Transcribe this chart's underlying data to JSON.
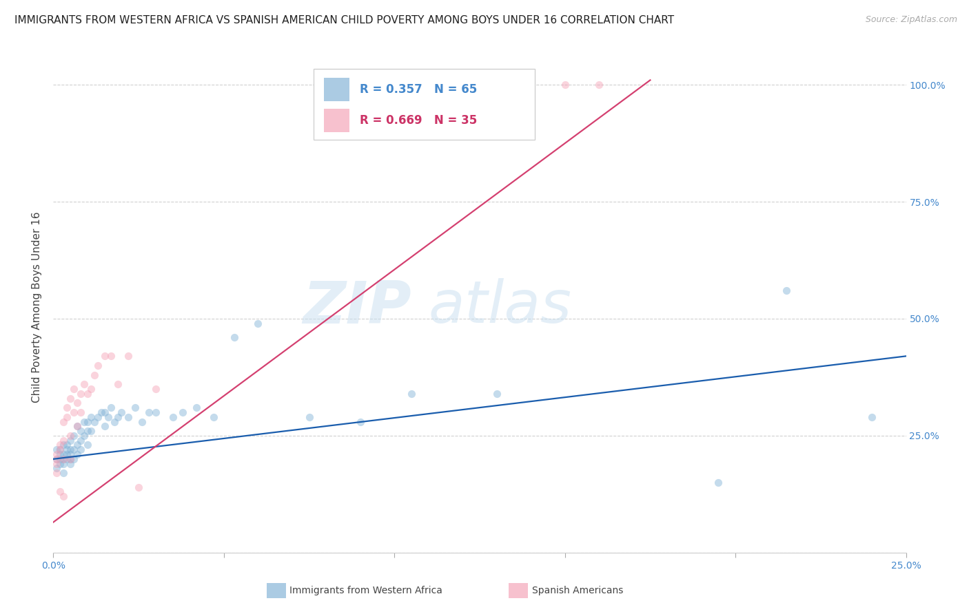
{
  "title": "IMMIGRANTS FROM WESTERN AFRICA VS SPANISH AMERICAN CHILD POVERTY AMONG BOYS UNDER 16 CORRELATION CHART",
  "source": "Source: ZipAtlas.com",
  "ylabel": "Child Poverty Among Boys Under 16",
  "xlim": [
    0.0,
    0.25
  ],
  "ylim": [
    0.0,
    1.05
  ],
  "yticks": [
    0.0,
    0.25,
    0.5,
    0.75,
    1.0
  ],
  "ytick_labels_right": [
    "",
    "25.0%",
    "50.0%",
    "75.0%",
    "100.0%"
  ],
  "xticks": [
    0.0,
    0.05,
    0.1,
    0.15,
    0.2,
    0.25
  ],
  "xtick_labels": [
    "0.0%",
    "",
    "",
    "",
    "",
    "25.0%"
  ],
  "blue_color": "#7EB0D5",
  "pink_color": "#F4A0B5",
  "blue_line_color": "#1A5DAD",
  "pink_line_color": "#D44070",
  "watermark_zip": "ZIP",
  "watermark_atlas": "atlas",
  "legend_R_blue": "R = 0.357",
  "legend_N_blue": "N = 65",
  "legend_R_pink": "R = 0.669",
  "legend_N_pink": "N = 35",
  "legend_label_blue": "Immigrants from Western Africa",
  "legend_label_pink": "Spanish Americans",
  "blue_scatter_x": [
    0.001,
    0.001,
    0.001,
    0.002,
    0.002,
    0.002,
    0.002,
    0.003,
    0.003,
    0.003,
    0.003,
    0.003,
    0.004,
    0.004,
    0.004,
    0.004,
    0.005,
    0.005,
    0.005,
    0.005,
    0.005,
    0.006,
    0.006,
    0.006,
    0.007,
    0.007,
    0.007,
    0.008,
    0.008,
    0.008,
    0.009,
    0.009,
    0.01,
    0.01,
    0.01,
    0.011,
    0.011,
    0.012,
    0.013,
    0.014,
    0.015,
    0.015,
    0.016,
    0.017,
    0.018,
    0.019,
    0.02,
    0.022,
    0.024,
    0.026,
    0.028,
    0.03,
    0.035,
    0.038,
    0.042,
    0.047,
    0.053,
    0.06,
    0.075,
    0.09,
    0.105,
    0.13,
    0.195,
    0.215,
    0.24
  ],
  "blue_scatter_y": [
    0.2,
    0.22,
    0.18,
    0.21,
    0.2,
    0.19,
    0.22,
    0.2,
    0.19,
    0.21,
    0.23,
    0.17,
    0.21,
    0.22,
    0.2,
    0.23,
    0.2,
    0.21,
    0.24,
    0.19,
    0.22,
    0.25,
    0.22,
    0.2,
    0.27,
    0.23,
    0.21,
    0.26,
    0.24,
    0.22,
    0.28,
    0.25,
    0.28,
    0.26,
    0.23,
    0.29,
    0.26,
    0.28,
    0.29,
    0.3,
    0.3,
    0.27,
    0.29,
    0.31,
    0.28,
    0.29,
    0.3,
    0.29,
    0.31,
    0.28,
    0.3,
    0.3,
    0.29,
    0.3,
    0.31,
    0.29,
    0.46,
    0.49,
    0.29,
    0.28,
    0.34,
    0.34,
    0.15,
    0.56,
    0.29
  ],
  "pink_scatter_x": [
    0.001,
    0.001,
    0.001,
    0.001,
    0.002,
    0.002,
    0.002,
    0.003,
    0.003,
    0.003,
    0.003,
    0.004,
    0.004,
    0.005,
    0.005,
    0.005,
    0.006,
    0.006,
    0.007,
    0.007,
    0.008,
    0.008,
    0.009,
    0.01,
    0.011,
    0.012,
    0.013,
    0.015,
    0.017,
    0.019,
    0.022,
    0.025,
    0.03,
    0.15,
    0.16
  ],
  "pink_scatter_y": [
    0.2,
    0.21,
    0.19,
    0.17,
    0.23,
    0.22,
    0.13,
    0.24,
    0.2,
    0.28,
    0.12,
    0.31,
    0.29,
    0.33,
    0.25,
    0.2,
    0.35,
    0.3,
    0.32,
    0.27,
    0.34,
    0.3,
    0.36,
    0.34,
    0.35,
    0.38,
    0.4,
    0.42,
    0.42,
    0.36,
    0.42,
    0.14,
    0.35,
    1.0,
    1.0
  ],
  "blue_line_x": [
    0.0,
    0.25
  ],
  "blue_line_y": [
    0.2,
    0.42
  ],
  "pink_line_x": [
    0.0,
    0.175
  ],
  "pink_line_y": [
    0.065,
    1.01
  ],
  "background_color": "#ffffff",
  "grid_color": "#d0d0d0",
  "tick_color": "#4488CC",
  "title_fontsize": 11,
  "axis_label_fontsize": 11,
  "tick_fontsize": 10,
  "marker_size": 65,
  "marker_alpha": 0.45,
  "line_width": 1.6
}
